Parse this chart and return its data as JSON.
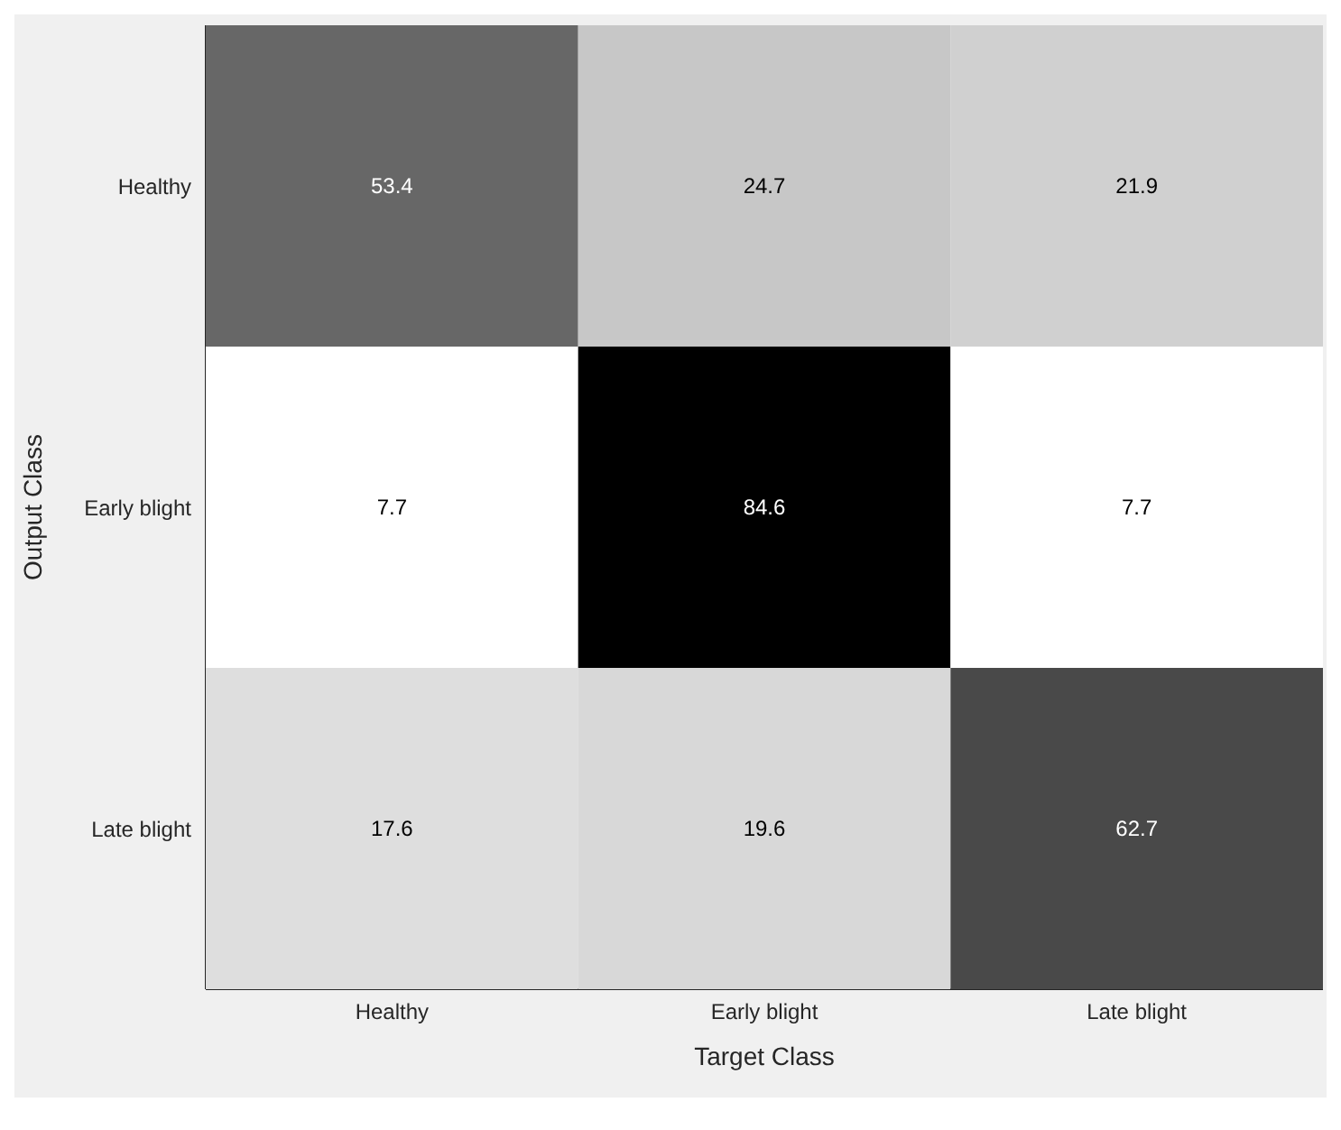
{
  "chart_data": {
    "type": "heatmap",
    "xlabel": "Target Class",
    "ylabel": "Output Class",
    "categories": [
      "Healthy",
      "Early blight",
      "Late blight"
    ],
    "y_categories": [
      "Healthy",
      "Early blight",
      "Late blight"
    ],
    "cells": [
      [
        53.4,
        24.7,
        21.9
      ],
      [
        7.7,
        84.6,
        7.7
      ],
      [
        17.6,
        19.6,
        62.7
      ]
    ],
    "data_labels": true
  }
}
